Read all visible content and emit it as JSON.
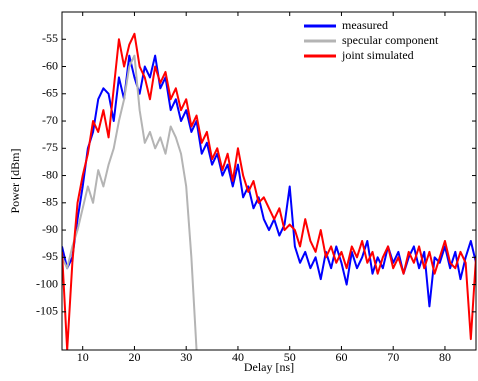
{
  "chart_data": {
    "type": "line",
    "x_label": "Delay [ns]",
    "y_label": "Power [dBm]",
    "xlim": [
      6,
      86
    ],
    "xticks": [
      10,
      20,
      30,
      40,
      50,
      60,
      70,
      80
    ],
    "ylim": [
      -112,
      -50
    ],
    "yticks": [
      -105,
      -100,
      -95,
      -90,
      -85,
      -80,
      -75,
      -70,
      -65,
      -60,
      -55
    ],
    "legend": "upper right",
    "series": [
      {
        "name": "measured",
        "color": "#0000ff",
        "x": [
          6,
          7,
          8,
          9,
          10,
          11,
          12,
          13,
          14,
          15,
          16,
          17,
          18,
          19,
          20,
          21,
          22,
          23,
          24,
          25,
          26,
          27,
          28,
          29,
          30,
          31,
          32,
          33,
          34,
          35,
          36,
          37,
          38,
          39,
          40,
          41,
          42,
          43,
          44,
          45,
          46,
          47,
          48,
          49,
          50,
          51,
          52,
          53,
          54,
          55,
          56,
          57,
          58,
          59,
          60,
          61,
          62,
          63,
          64,
          65,
          66,
          67,
          68,
          69,
          70,
          71,
          72,
          73,
          74,
          75,
          76,
          77,
          78,
          79,
          80,
          81,
          82,
          83,
          84,
          85,
          86
        ],
        "values": [
          -93,
          -97,
          -95,
          -88,
          -82,
          -75,
          -72,
          -66,
          -64,
          -65,
          -70,
          -62,
          -66,
          -58,
          -62,
          -65,
          -60,
          -62,
          -58,
          -64,
          -62,
          -68,
          -66,
          -70,
          -68,
          -72,
          -70,
          -76,
          -74,
          -78,
          -76,
          -80,
          -78,
          -82,
          -78,
          -84,
          -82,
          -86,
          -84,
          -88,
          -90,
          -88,
          -91,
          -89,
          -82,
          -93,
          -96,
          -94,
          -97,
          -95,
          -99,
          -94,
          -97,
          -93,
          -96,
          -100,
          -94,
          -97,
          -95,
          -92,
          -98,
          -95,
          -97,
          -93,
          -96,
          -94,
          -98,
          -95,
          -93,
          -97,
          -94,
          -104,
          -95,
          -96,
          -93,
          -97,
          -94,
          -99,
          -95,
          -92,
          -96
        ]
      },
      {
        "name": "specular component",
        "color": "#b4b4b4",
        "x": [
          6,
          7,
          8,
          9,
          10,
          11,
          12,
          13,
          14,
          15,
          16,
          17,
          18,
          19,
          20,
          21,
          22,
          23,
          24,
          25,
          26,
          27,
          28,
          29,
          30,
          31,
          32
        ],
        "values": [
          -95,
          -97,
          -93,
          -90,
          -86,
          -82,
          -85,
          -79,
          -82,
          -78,
          -75,
          -70,
          -66,
          -60,
          -58,
          -68,
          -74,
          -72,
          -75,
          -73,
          -76,
          -71,
          -73,
          -76,
          -82,
          -95,
          -112
        ]
      },
      {
        "name": "joint simulated",
        "color": "#ff0000",
        "x": [
          6,
          7,
          8,
          9,
          10,
          11,
          12,
          13,
          14,
          15,
          16,
          17,
          18,
          19,
          20,
          21,
          22,
          23,
          24,
          25,
          26,
          27,
          28,
          29,
          30,
          31,
          32,
          33,
          34,
          35,
          36,
          37,
          38,
          39,
          40,
          41,
          42,
          43,
          44,
          45,
          46,
          47,
          48,
          49,
          50,
          51,
          52,
          53,
          54,
          55,
          56,
          57,
          58,
          59,
          60,
          61,
          62,
          63,
          64,
          65,
          66,
          67,
          68,
          69,
          70,
          71,
          72,
          73,
          74,
          75,
          76,
          77,
          78,
          79,
          80,
          81,
          82,
          83,
          84,
          85,
          86
        ],
        "values": [
          -94,
          -112,
          -96,
          -85,
          -80,
          -76,
          -70,
          -72,
          -68,
          -73,
          -64,
          -55,
          -60,
          -56,
          -54,
          -60,
          -62,
          -66,
          -60,
          -63,
          -61,
          -66,
          -64,
          -68,
          -66,
          -71,
          -69,
          -74,
          -72,
          -77,
          -75,
          -79,
          -76,
          -81,
          -75,
          -80,
          -83,
          -81,
          -85,
          -84,
          -86,
          -88,
          -86,
          -90,
          -89,
          -90,
          -93,
          -88,
          -92,
          -94,
          -90,
          -95,
          -93,
          -96,
          -94,
          -97,
          -93,
          -95,
          -92,
          -96,
          -94,
          -98,
          -95,
          -93,
          -97,
          -95,
          -98,
          -94,
          -96,
          -93,
          -97,
          -94,
          -98,
          -95,
          -92,
          -96,
          -97,
          -94,
          -96,
          -110,
          -95
        ]
      }
    ]
  }
}
